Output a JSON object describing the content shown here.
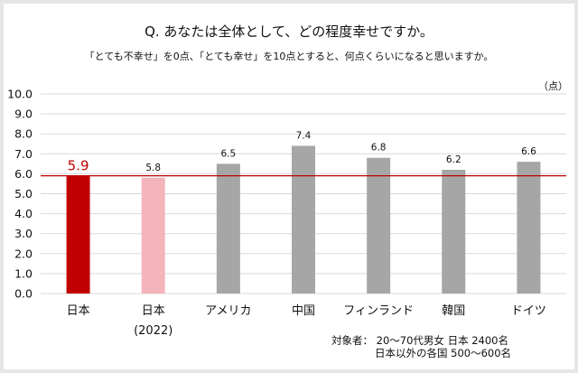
{
  "chart_data": {
    "type": "bar",
    "title": "Q. あなたは全体として、どの程度幸せですか。",
    "subtitle": "「とても不幸せ」を0点、「とても幸せ」を10点とすると、何点くらいになると思いますか。",
    "unit_label": "（点）",
    "categories": [
      [
        "日本"
      ],
      [
        "日本",
        "(2022)"
      ],
      [
        "アメリカ"
      ],
      [
        "中国"
      ],
      [
        "フィンランド"
      ],
      [
        "韓国"
      ],
      [
        "ドイツ"
      ]
    ],
    "values": [
      5.9,
      5.8,
      6.5,
      7.4,
      6.8,
      6.2,
      6.6
    ],
    "value_labels": [
      "5.9",
      "5.8",
      "6.5",
      "7.4",
      "6.8",
      "6.2",
      "6.6"
    ],
    "colors": [
      "#c00000",
      "#f4b4bc",
      "#a6a6a6",
      "#a6a6a6",
      "#a6a6a6",
      "#a6a6a6",
      "#a6a6a6"
    ],
    "reference_line": {
      "value": 5.9,
      "color": "#c00000"
    },
    "ylim": [
      0,
      10
    ],
    "yticks": [
      "0.0",
      "1.0",
      "2.0",
      "3.0",
      "4.0",
      "5.0",
      "6.0",
      "7.0",
      "8.0",
      "9.0",
      "10.0"
    ],
    "grid": true,
    "xlabel": "",
    "ylabel": ""
  },
  "footnote": {
    "line1": "対象者： 20～70代男女  日本  2400名",
    "line2": "日本以外の各国  500～600名"
  }
}
